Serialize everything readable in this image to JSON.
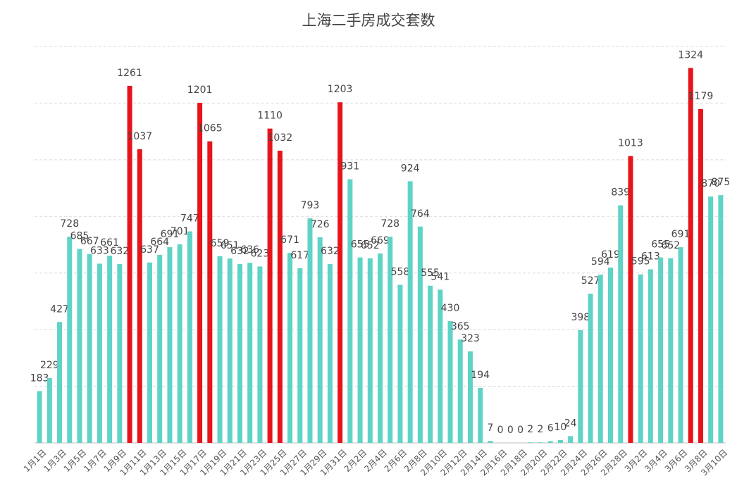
{
  "chart_data": {
    "type": "bar",
    "title": "上海二手房成交套数",
    "categories": [
      "1月1日",
      null,
      "1月3日",
      null,
      "1月5日",
      null,
      "1月7日",
      null,
      "1月9日",
      null,
      "1月11日",
      null,
      "1月13日",
      null,
      "1月15日",
      null,
      "1月17日",
      null,
      "1月19日",
      null,
      "1月21日",
      null,
      "1月23日",
      null,
      "1月25日",
      null,
      "1月27日",
      null,
      "1月29日",
      null,
      "1月31日",
      null,
      "2月2日",
      null,
      "2月4日",
      null,
      "2月6日",
      null,
      "2月8日",
      null,
      "2月10日",
      null,
      "2月12日",
      null,
      "2月14日",
      null,
      "2月16日",
      null,
      "2月18日",
      null,
      "2月20日",
      null,
      "2月22日",
      null,
      "2月24日",
      null,
      "2月26日",
      null,
      "2月28日",
      null,
      "3月2日",
      null,
      "3月4日",
      null,
      "3月6日",
      null,
      "3月8日",
      null,
      "3月10日"
    ],
    "values": [
      183,
      229,
      427,
      728,
      685,
      667,
      633,
      661,
      632,
      1261,
      1037,
      637,
      664,
      691,
      701,
      747,
      1201,
      1065,
      659,
      651,
      632,
      636,
      623,
      1110,
      1032,
      671,
      617,
      793,
      726,
      632,
      1203,
      931,
      655,
      652,
      669,
      728,
      558,
      924,
      764,
      555,
      541,
      430,
      365,
      323,
      194,
      7,
      0,
      0,
      0,
      2,
      2,
      6,
      10,
      24,
      398,
      527,
      594,
      619,
      839,
      1013,
      595,
      613,
      655,
      652,
      691,
      1324,
      1179,
      870,
      875
    ],
    "colors": [
      "#5fd3c6",
      "#5fd3c6",
      "#5fd3c6",
      "#5fd3c6",
      "#5fd3c6",
      "#5fd3c6",
      "#5fd3c6",
      "#5fd3c6",
      "#5fd3c6",
      "#e8141b",
      "#e8141b",
      "#5fd3c6",
      "#5fd3c6",
      "#5fd3c6",
      "#5fd3c6",
      "#5fd3c6",
      "#e8141b",
      "#e8141b",
      "#5fd3c6",
      "#5fd3c6",
      "#5fd3c6",
      "#5fd3c6",
      "#5fd3c6",
      "#e8141b",
      "#e8141b",
      "#5fd3c6",
      "#5fd3c6",
      "#5fd3c6",
      "#5fd3c6",
      "#5fd3c6",
      "#e8141b",
      "#5fd3c6",
      "#5fd3c6",
      "#5fd3c6",
      "#5fd3c6",
      "#5fd3c6",
      "#5fd3c6",
      "#5fd3c6",
      "#5fd3c6",
      "#5fd3c6",
      "#5fd3c6",
      "#5fd3c6",
      "#5fd3c6",
      "#5fd3c6",
      "#5fd3c6",
      "#5fd3c6",
      "#5fd3c6",
      "#5fd3c6",
      "#5fd3c6",
      "#5fd3c6",
      "#5fd3c6",
      "#5fd3c6",
      "#5fd3c6",
      "#5fd3c6",
      "#5fd3c6",
      "#5fd3c6",
      "#5fd3c6",
      "#5fd3c6",
      "#5fd3c6",
      "#e8141b",
      "#5fd3c6",
      "#5fd3c6",
      "#5fd3c6",
      "#5fd3c6",
      "#5fd3c6",
      "#e8141b",
      "#e8141b",
      "#5fd3c6",
      "#5fd3c6"
    ],
    "ylim": [
      0,
      1400
    ],
    "yticks": [
      0,
      200,
      400,
      600,
      800,
      1000,
      1200,
      1400
    ],
    "grid": true
  }
}
